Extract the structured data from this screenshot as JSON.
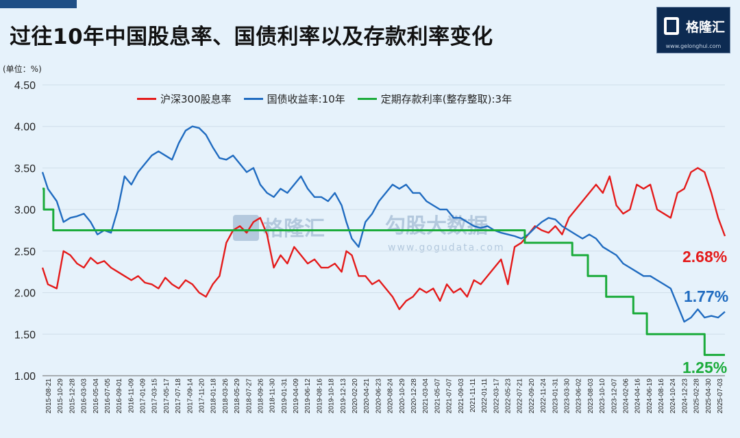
{
  "title": "过往10年中国股息率、国债利率以及存款利率变化",
  "unit_label": "(单位：%)",
  "logo": {
    "name": "格隆汇",
    "url": "www.gelonghui.com"
  },
  "watermark": {
    "brand": "格隆汇",
    "text": "勾股大数据",
    "url": "www.gogudata.com"
  },
  "chart_data": {
    "type": "line",
    "title": "过往10年中国股息率、国债利率以及存款利率变化",
    "xlabel": "",
    "ylabel": "(单位：%)",
    "ylim": [
      1.0,
      4.5
    ],
    "yticks": [
      "1.00",
      "1.50",
      "2.00",
      "2.50",
      "3.00",
      "3.50",
      "4.00",
      "4.50"
    ],
    "x_tick_labels": [
      "2015-08-21",
      "2015-10-29",
      "2015-12-28",
      "2016-03-03",
      "2016-05-04",
      "2016-07-05",
      "2016-09-01",
      "2016-11-09",
      "2017-01-09",
      "2017-03-15",
      "2017-05-17",
      "2017-07-18",
      "2017-09-14",
      "2017-11-20",
      "2018-01-18",
      "2018-03-26",
      "2018-05-29",
      "2018-07-27",
      "2018-09-26",
      "2018-11-30",
      "2019-01-31",
      "2019-04-09",
      "2019-06-12",
      "2019-08-16",
      "2019-10-18",
      "2019-12-13",
      "2020-02-20",
      "2020-04-21",
      "2020-06-23",
      "2020-08-24",
      "2020-10-29",
      "2020-12-28",
      "2021-03-04",
      "2021-05-07",
      "2021-07-07",
      "2021-09-03",
      "2021-11-11",
      "2022-01-11",
      "2022-03-17",
      "2022-05-23",
      "2022-07-21",
      "2022-09-20",
      "2022-11-24",
      "2023-01-31",
      "2023-03-30",
      "2023-06-02",
      "2023-08-03",
      "2023-10-10",
      "2023-12-07",
      "2024-02-06",
      "2024-04-16",
      "2024-06-19",
      "2024-08-16",
      "2024-10-24",
      "2024-12-23",
      "2025-02-28",
      "2025-04-30",
      "2025-07-03"
    ],
    "x_range": [
      2015.64,
      2025.7
    ],
    "legend": {
      "position": "top"
    },
    "series": [
      {
        "name": "沪深300股息率",
        "color": "#e41a1a",
        "x": [
          2015.64,
          2015.72,
          2015.85,
          2015.95,
          2016.05,
          2016.15,
          2016.25,
          2016.35,
          2016.45,
          2016.55,
          2016.65,
          2016.75,
          2016.85,
          2016.95,
          2017.05,
          2017.15,
          2017.25,
          2017.35,
          2017.45,
          2017.55,
          2017.65,
          2017.75,
          2017.85,
          2017.95,
          2018.05,
          2018.15,
          2018.25,
          2018.35,
          2018.45,
          2018.55,
          2018.65,
          2018.75,
          2018.85,
          2018.95,
          2019.05,
          2019.15,
          2019.25,
          2019.35,
          2019.45,
          2019.55,
          2019.65,
          2019.75,
          2019.85,
          2019.95,
          2020.05,
          2020.12,
          2020.2,
          2020.3,
          2020.4,
          2020.5,
          2020.6,
          2020.7,
          2020.8,
          2020.9,
          2021.0,
          2021.1,
          2021.2,
          2021.3,
          2021.4,
          2021.5,
          2021.6,
          2021.7,
          2021.8,
          2021.9,
          2022.0,
          2022.1,
          2022.2,
          2022.3,
          2022.4,
          2022.5,
          2022.6,
          2022.7,
          2022.8,
          2022.9,
          2023.0,
          2023.1,
          2023.2,
          2023.3,
          2023.4,
          2023.5,
          2023.6,
          2023.7,
          2023.8,
          2023.9,
          2024.0,
          2024.1,
          2024.2,
          2024.3,
          2024.4,
          2024.5,
          2024.6,
          2024.7,
          2024.8,
          2024.9,
          2025.0,
          2025.1,
          2025.2,
          2025.3,
          2025.4,
          2025.5,
          2025.6,
          2025.7
        ],
        "y": [
          2.3,
          2.1,
          2.05,
          2.5,
          2.45,
          2.35,
          2.3,
          2.42,
          2.35,
          2.38,
          2.3,
          2.25,
          2.2,
          2.15,
          2.2,
          2.12,
          2.1,
          2.05,
          2.18,
          2.1,
          2.05,
          2.15,
          2.1,
          2.0,
          1.95,
          2.1,
          2.2,
          2.6,
          2.75,
          2.8,
          2.72,
          2.85,
          2.9,
          2.7,
          2.3,
          2.45,
          2.35,
          2.55,
          2.45,
          2.35,
          2.4,
          2.3,
          2.3,
          2.35,
          2.25,
          2.5,
          2.45,
          2.2,
          2.2,
          2.1,
          2.15,
          2.05,
          1.95,
          1.8,
          1.9,
          1.95,
          2.05,
          2.0,
          2.05,
          1.9,
          2.1,
          2.0,
          2.05,
          1.95,
          2.15,
          2.1,
          2.2,
          2.3,
          2.4,
          2.1,
          2.55,
          2.6,
          2.7,
          2.8,
          2.75,
          2.72,
          2.8,
          2.7,
          2.9,
          3.0,
          3.1,
          3.2,
          3.3,
          3.2,
          3.4,
          3.05,
          2.95,
          3.0,
          3.3,
          3.25,
          3.3,
          3.0,
          2.95,
          2.9,
          3.2,
          3.25,
          3.45,
          3.5,
          3.45,
          3.2,
          2.9,
          2.68
        ]
      },
      {
        "name": "国债收益率:10年",
        "color": "#1f6bc0",
        "x": [
          2015.64,
          2015.72,
          2015.85,
          2015.95,
          2016.05,
          2016.15,
          2016.25,
          2016.35,
          2016.45,
          2016.55,
          2016.65,
          2016.75,
          2016.85,
          2016.95,
          2017.05,
          2017.15,
          2017.25,
          2017.35,
          2017.45,
          2017.55,
          2017.65,
          2017.75,
          2017.85,
          2017.95,
          2018.05,
          2018.15,
          2018.25,
          2018.35,
          2018.45,
          2018.55,
          2018.65,
          2018.75,
          2018.85,
          2018.95,
          2019.05,
          2019.15,
          2019.25,
          2019.35,
          2019.45,
          2019.55,
          2019.65,
          2019.75,
          2019.85,
          2019.95,
          2020.05,
          2020.12,
          2020.2,
          2020.3,
          2020.4,
          2020.5,
          2020.6,
          2020.7,
          2020.8,
          2020.9,
          2021.0,
          2021.1,
          2021.2,
          2021.3,
          2021.4,
          2021.5,
          2021.6,
          2021.7,
          2021.8,
          2021.9,
          2022.0,
          2022.1,
          2022.2,
          2022.3,
          2022.4,
          2022.5,
          2022.6,
          2022.7,
          2022.8,
          2022.9,
          2023.0,
          2023.1,
          2023.2,
          2023.3,
          2023.4,
          2023.5,
          2023.6,
          2023.7,
          2023.8,
          2023.9,
          2024.0,
          2024.1,
          2024.2,
          2024.3,
          2024.4,
          2024.5,
          2024.6,
          2024.7,
          2024.8,
          2024.9,
          2025.0,
          2025.1,
          2025.2,
          2025.3,
          2025.4,
          2025.5,
          2025.6,
          2025.7
        ],
        "y": [
          3.45,
          3.25,
          3.1,
          2.85,
          2.9,
          2.92,
          2.95,
          2.85,
          2.7,
          2.75,
          2.72,
          3.0,
          3.4,
          3.3,
          3.45,
          3.55,
          3.65,
          3.7,
          3.65,
          3.6,
          3.8,
          3.95,
          4.0,
          3.98,
          3.9,
          3.75,
          3.62,
          3.6,
          3.65,
          3.55,
          3.45,
          3.5,
          3.3,
          3.2,
          3.15,
          3.25,
          3.2,
          3.3,
          3.4,
          3.25,
          3.15,
          3.15,
          3.1,
          3.2,
          3.05,
          2.85,
          2.65,
          2.55,
          2.85,
          2.95,
          3.1,
          3.2,
          3.3,
          3.25,
          3.3,
          3.2,
          3.2,
          3.1,
          3.05,
          3.0,
          3.0,
          2.9,
          2.9,
          2.85,
          2.8,
          2.78,
          2.8,
          2.75,
          2.72,
          2.7,
          2.68,
          2.65,
          2.7,
          2.78,
          2.85,
          2.9,
          2.88,
          2.8,
          2.75,
          2.7,
          2.65,
          2.7,
          2.65,
          2.55,
          2.5,
          2.45,
          2.35,
          2.3,
          2.25,
          2.2,
          2.2,
          2.15,
          2.1,
          2.05,
          1.85,
          1.65,
          1.7,
          1.8,
          1.7,
          1.72,
          1.7,
          1.77
        ]
      },
      {
        "name": "定期存款利率(整存整取):3年",
        "color": "#1aab3a",
        "x": [
          2015.64,
          2015.66,
          2015.66,
          2015.8,
          2015.8,
          2022.75,
          2022.75,
          2023.45,
          2023.45,
          2023.68,
          2023.68,
          2023.95,
          2023.95,
          2024.35,
          2024.35,
          2024.55,
          2024.55,
          2024.8,
          2024.8,
          2025.4,
          2025.4,
          2025.7
        ],
        "y": [
          3.25,
          3.25,
          3.0,
          3.0,
          2.75,
          2.75,
          2.6,
          2.6,
          2.45,
          2.45,
          2.2,
          2.2,
          1.95,
          1.95,
          1.75,
          1.75,
          1.5,
          1.5,
          1.5,
          1.5,
          1.25,
          1.25
        ]
      }
    ],
    "end_labels": [
      {
        "series": "沪深300股息率",
        "text": "2.68%"
      },
      {
        "series": "国债收益率:10年",
        "text": "1.77%"
      },
      {
        "series": "定期存款利率(整存整取):3年",
        "text": "1.25%"
      }
    ]
  }
}
